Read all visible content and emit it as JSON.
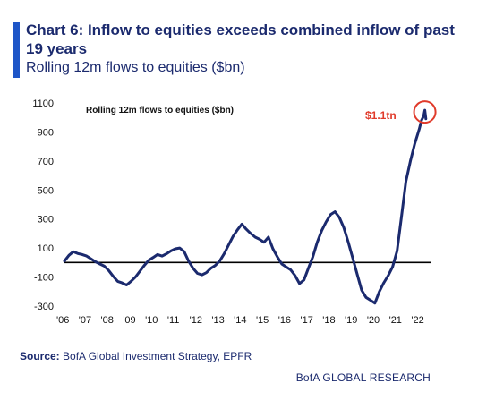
{
  "header": {
    "title": "Chart 6: Inflow to equities exceeds combined inflow of past 19 years",
    "subtitle": "Rolling 12m flows to equities ($bn)"
  },
  "chart_data": {
    "type": "line",
    "inner_label": "Rolling 12m flows to equities ($bn)",
    "annotation": "$1.1tn",
    "x_tick_labels": [
      "'06",
      "'07",
      "'08",
      "'09",
      "'10",
      "'11",
      "'12",
      "'13",
      "'14",
      "'15",
      "'16",
      "'17",
      "'18",
      "'19",
      "'20",
      "'21",
      "'22"
    ],
    "y_tick_labels": [
      "1100",
      "900",
      "700",
      "500",
      "300",
      "100",
      "-100",
      "-300"
    ],
    "ylim": [
      -300,
      1100
    ],
    "xlim": [
      2006,
      2022.5
    ],
    "zero_line": 0,
    "grid": false,
    "series": [
      {
        "color": "#1b2a6e",
        "points": [
          [
            2006.0,
            10
          ],
          [
            2006.2,
            50
          ],
          [
            2006.4,
            75
          ],
          [
            2006.6,
            62
          ],
          [
            2006.8,
            55
          ],
          [
            2007.0,
            45
          ],
          [
            2007.2,
            25
          ],
          [
            2007.4,
            5
          ],
          [
            2007.6,
            -10
          ],
          [
            2007.8,
            -25
          ],
          [
            2008.0,
            -55
          ],
          [
            2008.2,
            -95
          ],
          [
            2008.4,
            -130
          ],
          [
            2008.6,
            -140
          ],
          [
            2008.8,
            -155
          ],
          [
            2009.0,
            -130
          ],
          [
            2009.2,
            -100
          ],
          [
            2009.4,
            -60
          ],
          [
            2009.6,
            -20
          ],
          [
            2009.8,
            15
          ],
          [
            2010.0,
            35
          ],
          [
            2010.2,
            55
          ],
          [
            2010.4,
            45
          ],
          [
            2010.6,
            60
          ],
          [
            2010.8,
            80
          ],
          [
            2011.0,
            95
          ],
          [
            2011.2,
            100
          ],
          [
            2011.4,
            75
          ],
          [
            2011.6,
            10
          ],
          [
            2011.8,
            -40
          ],
          [
            2012.0,
            -75
          ],
          [
            2012.2,
            -85
          ],
          [
            2012.4,
            -70
          ],
          [
            2012.6,
            -40
          ],
          [
            2012.8,
            -20
          ],
          [
            2013.0,
            10
          ],
          [
            2013.2,
            60
          ],
          [
            2013.4,
            120
          ],
          [
            2013.6,
            180
          ],
          [
            2013.8,
            225
          ],
          [
            2014.0,
            265
          ],
          [
            2014.2,
            230
          ],
          [
            2014.4,
            200
          ],
          [
            2014.6,
            175
          ],
          [
            2014.8,
            160
          ],
          [
            2015.0,
            140
          ],
          [
            2015.2,
            175
          ],
          [
            2015.4,
            95
          ],
          [
            2015.6,
            40
          ],
          [
            2015.8,
            -10
          ],
          [
            2016.0,
            -30
          ],
          [
            2016.2,
            -50
          ],
          [
            2016.4,
            -90
          ],
          [
            2016.6,
            -145
          ],
          [
            2016.8,
            -120
          ],
          [
            2017.0,
            -40
          ],
          [
            2017.2,
            40
          ],
          [
            2017.4,
            140
          ],
          [
            2017.6,
            220
          ],
          [
            2017.8,
            280
          ],
          [
            2018.0,
            330
          ],
          [
            2018.2,
            350
          ],
          [
            2018.4,
            310
          ],
          [
            2018.6,
            240
          ],
          [
            2018.8,
            140
          ],
          [
            2019.0,
            30
          ],
          [
            2019.2,
            -80
          ],
          [
            2019.4,
            -190
          ],
          [
            2019.6,
            -240
          ],
          [
            2019.8,
            -260
          ],
          [
            2020.0,
            -280
          ],
          [
            2020.2,
            -200
          ],
          [
            2020.4,
            -140
          ],
          [
            2020.6,
            -90
          ],
          [
            2020.8,
            -30
          ],
          [
            2021.0,
            80
          ],
          [
            2021.2,
            320
          ],
          [
            2021.4,
            560
          ],
          [
            2021.6,
            700
          ],
          [
            2021.8,
            820
          ],
          [
            2022.0,
            920
          ],
          [
            2022.1,
            980
          ],
          [
            2022.2,
            1010
          ],
          [
            2022.25,
            1050
          ],
          [
            2022.3,
            990
          ]
        ]
      }
    ]
  },
  "footer": {
    "source_label": "Source:",
    "source_text": "BofA Global Investment Strategy, EPFR",
    "brand": "BofA GLOBAL RESEARCH"
  }
}
